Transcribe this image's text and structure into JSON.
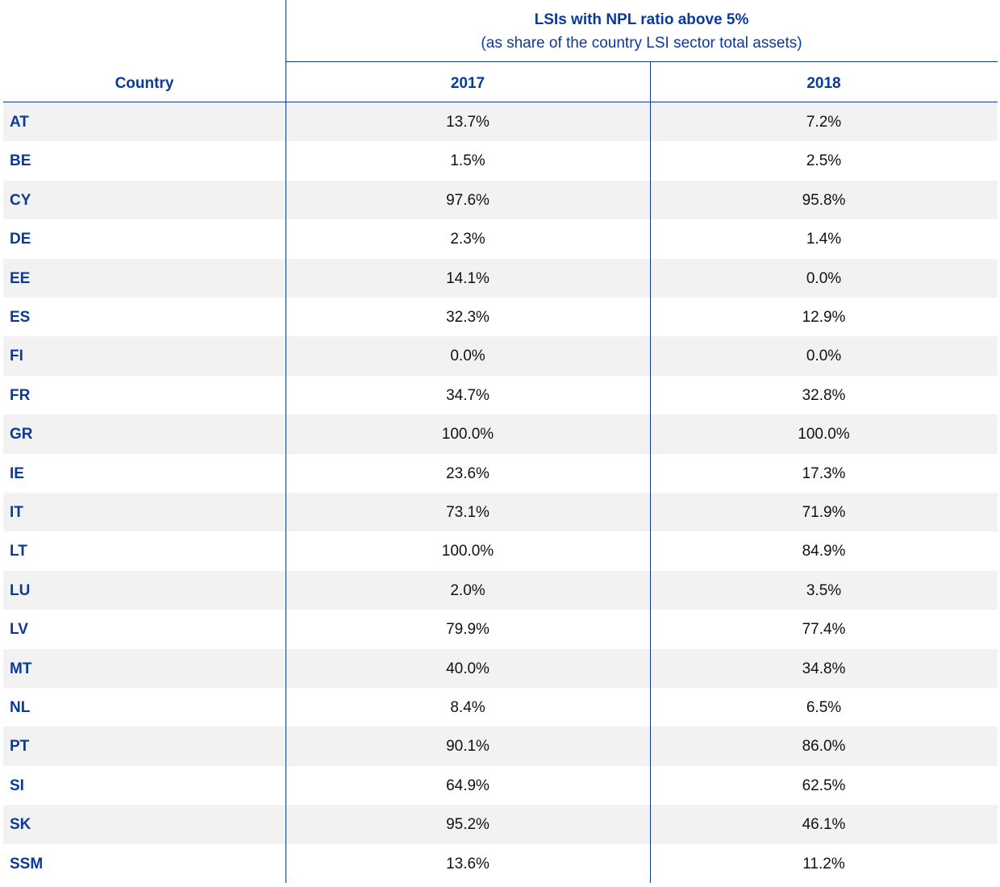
{
  "table": {
    "title": "LSIs with NPL ratio above 5%",
    "subtitle": "(as share of the country LSI sector total assets)",
    "header": [
      "Country",
      "2017",
      "2018"
    ],
    "rows": [
      [
        "AT",
        "13.7%",
        "7.2%"
      ],
      [
        "BE",
        "1.5%",
        "2.5%"
      ],
      [
        "CY",
        "97.6%",
        "95.8%"
      ],
      [
        "DE",
        "2.3%",
        "1.4%"
      ],
      [
        "EE",
        "14.1%",
        "0.0%"
      ],
      [
        "ES",
        "32.3%",
        "12.9%"
      ],
      [
        "FI",
        "0.0%",
        "0.0%"
      ],
      [
        "FR",
        "34.7%",
        "32.8%"
      ],
      [
        "GR",
        "100.0%",
        "100.0%"
      ],
      [
        "IE",
        "23.6%",
        "17.3%"
      ],
      [
        "IT",
        "73.1%",
        "71.9%"
      ],
      [
        "LT",
        "100.0%",
        "84.9%"
      ],
      [
        "LU",
        "2.0%",
        "3.5%"
      ],
      [
        "LV",
        "79.9%",
        "77.4%"
      ],
      [
        "MT",
        "40.0%",
        "34.8%"
      ],
      [
        "NL",
        "8.4%",
        "6.5%"
      ],
      [
        "PT",
        "90.1%",
        "86.0%"
      ],
      [
        "SI",
        "64.9%",
        "62.5%"
      ],
      [
        "SK",
        "95.2%",
        "46.1%"
      ],
      [
        "SSM",
        "13.6%",
        "11.2%"
      ]
    ]
  }
}
